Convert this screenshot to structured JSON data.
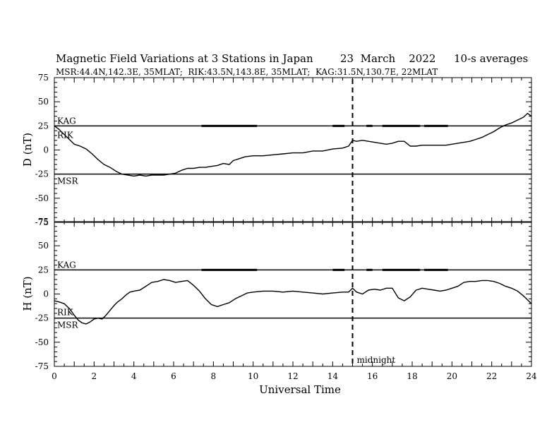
{
  "header": {
    "title": "Magnetic Field Variations at 3 Stations in Japan",
    "date": "23  March    2022",
    "averaging": "10-s averages",
    "subtitle": "MSR:44.4N,142.3E, 35MLAT;  RIK:43.5N,143.8E, 35MLAT;  KAG:31.5N,130.7E, 22MLAT"
  },
  "chart_data": [
    {
      "type": "line",
      "panel": "D",
      "ylabel": "D (nT)",
      "ylim": [
        -75,
        75
      ],
      "yticks": [
        75,
        50,
        25,
        0,
        -25,
        -50,
        -75
      ],
      "xlim": [
        0,
        24
      ],
      "station_labels": [
        {
          "name": "KAG",
          "baseline": 25
        },
        {
          "name": "RIK",
          "baseline": 25
        },
        {
          "name": "MSR",
          "baseline": -25
        }
      ],
      "series": [
        {
          "name": "RIK",
          "x": [
            0,
            0.2,
            0.5,
            0.8,
            1.0,
            1.3,
            1.6,
            1.9,
            2.2,
            2.5,
            2.8,
            3.1,
            3.4,
            3.7,
            4.0,
            4.3,
            4.6,
            4.9,
            5.2,
            5.5,
            5.8,
            6.1,
            6.4,
            6.7,
            7.0,
            7.3,
            7.6,
            7.9,
            8.2,
            8.5,
            8.8,
            9.0,
            9.3,
            9.6,
            10.0,
            10.5,
            11.0,
            11.5,
            12.0,
            12.5,
            13.0,
            13.5,
            14.0,
            14.5,
            14.8,
            15.0,
            15.2,
            15.5,
            15.8,
            16.1,
            16.4,
            16.7,
            17.0,
            17.3,
            17.6,
            17.9,
            18.2,
            18.5,
            18.8,
            19.1,
            19.4,
            19.7,
            20.0,
            20.3,
            20.6,
            20.9,
            21.2,
            21.5,
            21.8,
            22.1,
            22.4,
            22.7,
            23.0,
            23.3,
            23.6,
            23.8,
            24.0
          ],
          "values": [
            25,
            22,
            16,
            10,
            6,
            4,
            1,
            -4,
            -10,
            -15,
            -18,
            -22,
            -25,
            -26,
            -27,
            -26,
            -27,
            -26,
            -26,
            -26,
            -25,
            -24,
            -21,
            -19,
            -19,
            -18,
            -18,
            -17,
            -16,
            -14,
            -15,
            -11,
            -9,
            -7,
            -6,
            -6,
            -5,
            -4,
            -3,
            -3,
            -1,
            -1,
            1,
            2,
            4,
            10,
            9,
            10,
            9,
            8,
            7,
            6,
            7,
            9,
            9,
            4,
            4,
            5,
            5,
            5,
            5,
            5,
            6,
            7,
            8,
            9,
            11,
            13,
            16,
            19,
            23,
            26,
            28,
            31,
            34,
            38,
            35
          ]
        }
      ]
    },
    {
      "type": "line",
      "panel": "H",
      "ylabel": "H (nT)",
      "ylim": [
        -75,
        75
      ],
      "yticks": [
        75,
        50,
        25,
        0,
        -25,
        -50,
        -75
      ],
      "xlim": [
        0,
        24
      ],
      "xticks": [
        0,
        2,
        4,
        6,
        8,
        10,
        12,
        14,
        16,
        18,
        20,
        22,
        24
      ],
      "xlabel": "Universal Time",
      "midnight_marker": {
        "x": 15,
        "label": "midnight"
      },
      "station_labels": [
        {
          "name": "KAG",
          "baseline": 25
        },
        {
          "name": "RIK",
          "baseline": -25
        },
        {
          "name": "MSR",
          "baseline": -25
        }
      ],
      "series": [
        {
          "name": "RIK",
          "x": [
            0,
            0.2,
            0.5,
            0.8,
            1.0,
            1.2,
            1.4,
            1.6,
            1.8,
            2.0,
            2.2,
            2.4,
            2.6,
            2.8,
            3.0,
            3.2,
            3.4,
            3.6,
            3.8,
            4.0,
            4.3,
            4.6,
            4.9,
            5.2,
            5.5,
            5.8,
            6.1,
            6.4,
            6.7,
            7.0,
            7.3,
            7.6,
            7.9,
            8.2,
            8.5,
            8.8,
            9.1,
            9.4,
            9.7,
            10.0,
            10.5,
            11.0,
            11.5,
            12.0,
            12.5,
            13.0,
            13.5,
            14.0,
            14.5,
            14.8,
            15.0,
            15.2,
            15.5,
            15.8,
            16.1,
            16.4,
            16.7,
            17.0,
            17.3,
            17.6,
            17.9,
            18.2,
            18.5,
            18.8,
            19.1,
            19.4,
            19.7,
            20.0,
            20.3,
            20.6,
            20.9,
            21.2,
            21.5,
            21.8,
            22.1,
            22.4,
            22.7,
            23.0,
            23.3,
            23.6,
            23.8,
            24.0
          ],
          "values": [
            -7,
            -8,
            -10,
            -16,
            -22,
            -27,
            -30,
            -31,
            -29,
            -26,
            -25,
            -26,
            -22,
            -17,
            -12,
            -8,
            -5,
            -1,
            2,
            3,
            4,
            8,
            12,
            13,
            15,
            14,
            12,
            13,
            14,
            9,
            3,
            -5,
            -11,
            -13,
            -11,
            -9,
            -5,
            -2,
            1,
            2,
            3,
            3,
            2,
            3,
            2,
            1,
            0,
            1,
            2,
            2,
            6,
            2,
            0,
            4,
            5,
            4,
            6,
            6,
            -4,
            -7,
            -3,
            4,
            6,
            5,
            4,
            3,
            4,
            6,
            8,
            12,
            13,
            13,
            14,
            14,
            13,
            11,
            8,
            6,
            3,
            -2,
            -6,
            -10
          ]
        }
      ]
    }
  ]
}
